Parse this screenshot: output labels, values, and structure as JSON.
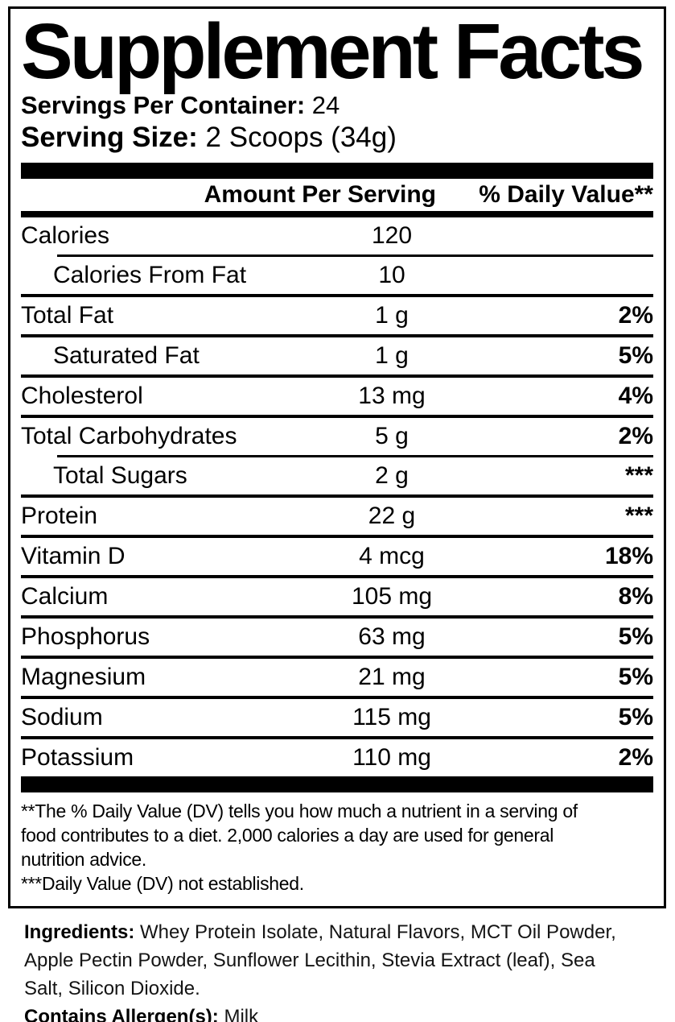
{
  "colors": {
    "text": "#000000",
    "background": "#ffffff"
  },
  "header": {
    "title": "Supplement Facts",
    "servings_label": "Servings Per Container:",
    "servings_value": "24",
    "serving_size_label": "Serving Size:",
    "serving_size_value": "2 Scoops (34g)"
  },
  "table": {
    "columns": {
      "amount": "Amount Per Serving",
      "daily_value": "% Daily Value**"
    },
    "rows": [
      {
        "name": "Calories",
        "amount": "120",
        "dv": "",
        "indent": false,
        "sep": "none"
      },
      {
        "name": "Calories From Fat",
        "amount": "10",
        "dv": "",
        "indent": true,
        "sep": "indent"
      },
      {
        "name": "Total Fat",
        "amount": "1 g",
        "dv": "2%",
        "indent": false,
        "sep": "full"
      },
      {
        "name": "Saturated Fat",
        "amount": "1 g",
        "dv": "5%",
        "indent": true,
        "sep": "full"
      },
      {
        "name": "Cholesterol",
        "amount": "13 mg",
        "dv": "4%",
        "indent": false,
        "sep": "full"
      },
      {
        "name": "Total Carbohydrates",
        "amount": "5 g",
        "dv": "2%",
        "indent": false,
        "sep": "full"
      },
      {
        "name": "Total Sugars",
        "amount": "2 g",
        "dv": "***",
        "indent": true,
        "sep": "indent"
      },
      {
        "name": "Protein",
        "amount": "22 g",
        "dv": "***",
        "indent": false,
        "sep": "full"
      },
      {
        "name": "Vitamin D",
        "amount": "4 mcg",
        "dv": "18%",
        "indent": false,
        "sep": "full"
      },
      {
        "name": "Calcium",
        "amount": "105 mg",
        "dv": "8%",
        "indent": false,
        "sep": "full"
      },
      {
        "name": "Phosphorus",
        "amount": "63 mg",
        "dv": "5%",
        "indent": false,
        "sep": "full"
      },
      {
        "name": "Magnesium",
        "amount": "21 mg",
        "dv": "5%",
        "indent": false,
        "sep": "full"
      },
      {
        "name": "Sodium",
        "amount": "115 mg",
        "dv": "5%",
        "indent": false,
        "sep": "full"
      },
      {
        "name": "Potassium",
        "amount": "110 mg",
        "dv": "2%",
        "indent": false,
        "sep": "full"
      }
    ]
  },
  "footnotes": [
    {
      "lines": [
        "**The % Daily Value (DV) tells you how much a nutrient in a serving of",
        "food contributes to a diet. 2,000 calories a day are used for general",
        "nutrition advice."
      ]
    },
    {
      "lines": [
        "***Daily Value (DV) not established."
      ]
    }
  ],
  "ingredients": {
    "label": "Ingredients:",
    "lines": [
      " Whey Protein Isolate, Natural Flavors, MCT Oil Powder,",
      "Apple Pectin Powder, Sunflower Lecithin, Stevia Extract (leaf), Sea",
      "Salt, Silicon Dioxide."
    ]
  },
  "allergen": {
    "label": "Contains Allergen(s):",
    "value": " Milk"
  }
}
